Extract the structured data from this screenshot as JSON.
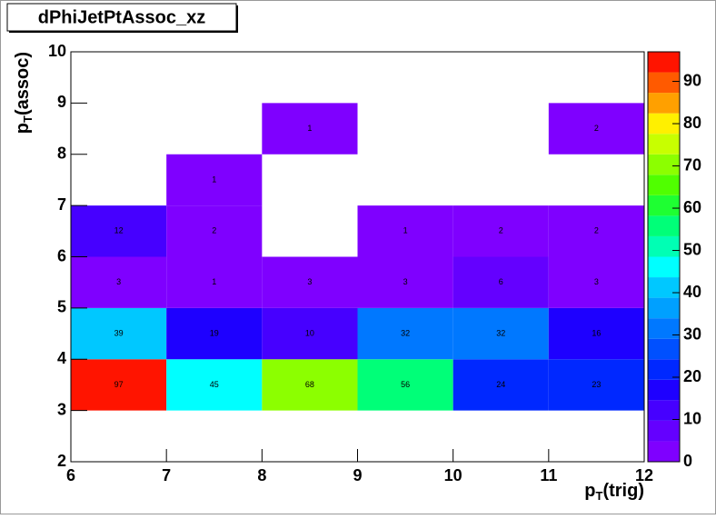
{
  "chart_data": {
    "type": "heatmap",
    "title": "dPhiJetPtAssoc_xz",
    "xlabel_parts": [
      "p",
      "T",
      "(trig)"
    ],
    "ylabel_parts": [
      "p",
      "T",
      "(assoc)"
    ],
    "xlim": [
      6,
      12
    ],
    "ylim": [
      2,
      10
    ],
    "xticks": [
      6,
      7,
      8,
      9,
      10,
      11,
      12
    ],
    "yticks": [
      2,
      3,
      4,
      5,
      6,
      7,
      8,
      9,
      10
    ],
    "x_edges": [
      6,
      7,
      8,
      9,
      10,
      11,
      12
    ],
    "y_edges": [
      2,
      3,
      4,
      5,
      6,
      7,
      8,
      9,
      10
    ],
    "z": [
      [
        null,
        null,
        null,
        null,
        null,
        null
      ],
      [
        97,
        45,
        68,
        56,
        24,
        23
      ],
      [
        39,
        19,
        10,
        32,
        32,
        16
      ],
      [
        3,
        1,
        3,
        3,
        6,
        3
      ],
      [
        12,
        2,
        null,
        1,
        2,
        2
      ],
      [
        null,
        1,
        null,
        null,
        null,
        null
      ],
      [
        null,
        null,
        1,
        null,
        null,
        2
      ],
      [
        null,
        null,
        null,
        null,
        null,
        null
      ]
    ],
    "zlim": [
      0,
      97
    ],
    "zticks": [
      0,
      10,
      20,
      30,
      40,
      50,
      60,
      70,
      80,
      90
    ],
    "palette": [
      "#7f00ff",
      "#6400ff",
      "#4600ff",
      "#1e00ff",
      "#0028ff",
      "#0050ff",
      "#0078ff",
      "#00a0ff",
      "#00c8ff",
      "#00ffff",
      "#00ffb4",
      "#00ff78",
      "#1eff32",
      "#50ff00",
      "#8cff00",
      "#c8ff00",
      "#fff000",
      "#ffa000",
      "#ff5a00",
      "#ff1400"
    ]
  }
}
